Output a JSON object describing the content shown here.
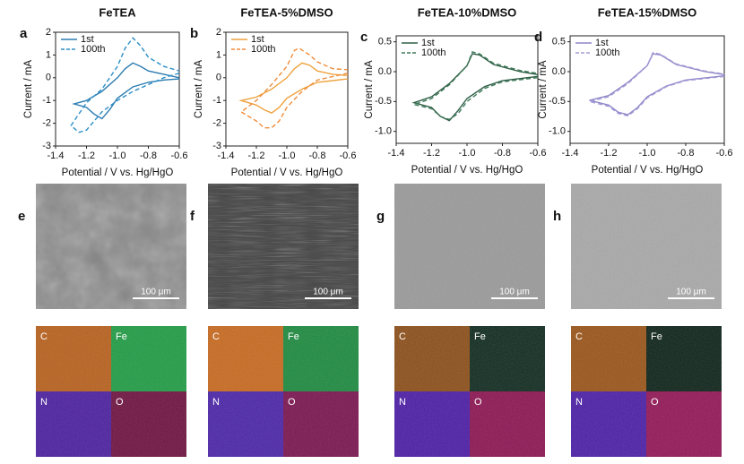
{
  "chart_data": [
    {
      "type": "line",
      "label": "a",
      "title": "FeTEA",
      "xlabel": "Potential / V vs. Hg/HgO",
      "ylabel": "Current / mA",
      "xlim": [
        -1.4,
        -0.6
      ],
      "xticks": [
        -1.4,
        -1.2,
        {
          "value": -1,
          "label": "-1.0"
        },
        -0.8,
        -0.6
      ],
      "ylim": [
        -3,
        2
      ],
      "yticks": [
        -3,
        -2,
        -1,
        0,
        1,
        2
      ],
      "legend": "upper left",
      "series": [
        {
          "name": "1st",
          "color": "#2b7bb0",
          "linestyle": "solid",
          "x": [
            -0.6,
            -0.7,
            -0.8,
            -0.9,
            -1.0,
            -1.05,
            -1.1,
            -1.15,
            -1.2,
            -1.28,
            -1.2,
            -1.1,
            -1.0,
            -0.95,
            -0.9,
            -0.85,
            -0.8,
            -0.7,
            -0.6
          ],
          "values": [
            -0.05,
            -0.1,
            -0.2,
            -0.4,
            -0.9,
            -1.4,
            -1.8,
            -1.6,
            -1.3,
            -1.15,
            -1.0,
            -0.6,
            0,
            0.4,
            0.65,
            0.5,
            0.3,
            0.15,
            0
          ]
        },
        {
          "name": "100th",
          "color": "#2b8fc8",
          "linestyle": "dashed",
          "x": [
            -0.6,
            -0.7,
            -0.8,
            -0.9,
            -1.0,
            -1.1,
            -1.2,
            -1.25,
            -1.3,
            -1.2,
            -1.1,
            -1.0,
            -0.95,
            -0.9,
            -0.85,
            -0.8,
            -0.7,
            -0.6
          ],
          "values": [
            0.2,
            0,
            -0.3,
            -0.6,
            -1.0,
            -1.5,
            -2.3,
            -2.4,
            -2.1,
            -1.1,
            -0.5,
            0.5,
            1.3,
            1.75,
            1.4,
            0.9,
            0.5,
            0.3
          ]
        }
      ]
    },
    {
      "type": "line",
      "label": "b",
      "title": "FeTEA-5%DMSO",
      "xlabel": "Potential / V vs. Hg/HgO",
      "ylabel": "Current / mA",
      "xlim": [
        -1.4,
        -0.6
      ],
      "xticks": [
        -1.4,
        -1.2,
        {
          "value": -1,
          "label": "-1.0"
        },
        -0.8,
        -0.6
      ],
      "ylim": [
        -3,
        2
      ],
      "yticks": [
        -3,
        -2,
        -1,
        0,
        1,
        2
      ],
      "legend": "upper left",
      "series": [
        {
          "name": "1st",
          "color": "#eea23e",
          "linestyle": "solid",
          "x": [
            -0.6,
            -0.8,
            -0.9,
            -1.0,
            -1.05,
            -1.1,
            -1.15,
            -1.2,
            -1.3,
            -1.2,
            -1.1,
            -1.0,
            -0.95,
            -0.9,
            -0.85,
            -0.8,
            -0.7,
            -0.6
          ],
          "values": [
            -0.05,
            -0.2,
            -0.5,
            -0.9,
            -1.3,
            -1.55,
            -1.4,
            -1.2,
            -1.0,
            -0.85,
            -0.5,
            0,
            0.4,
            0.65,
            0.55,
            0.3,
            0.15,
            0.1
          ]
        },
        {
          "name": "100th",
          "color": "#f08c3a",
          "linestyle": "dashed",
          "x": [
            -0.6,
            -0.8,
            -0.9,
            -1.0,
            -1.05,
            -1.1,
            -1.15,
            -1.2,
            -1.3,
            -1.2,
            -1.1,
            -1.0,
            -0.95,
            -0.92,
            -0.85,
            -0.8,
            -0.7,
            -0.6
          ],
          "values": [
            0.2,
            -0.1,
            -0.6,
            -1.3,
            -1.9,
            -2.2,
            -2.2,
            -1.9,
            -1.5,
            -1.0,
            -0.3,
            0.5,
            1.2,
            1.3,
            1.0,
            0.7,
            0.4,
            0.35
          ]
        }
      ]
    },
    {
      "type": "line",
      "label": "c",
      "title": "FeTEA-10%DMSO",
      "xlabel": "Potential / V vs. Hg/HgO",
      "ylabel": "Current / mA",
      "xlim": [
        -1.4,
        -0.6
      ],
      "xticks": [
        -1.4,
        -1.2,
        {
          "value": -1,
          "label": "-1.0"
        },
        -0.8,
        -0.6
      ],
      "ylim": [
        -1.2,
        0.6
      ],
      "yticks": [
        {
          "value": -1,
          "label": "-1.0"
        },
        -0.5,
        {
          "value": 0,
          "label": "0.0"
        },
        0.5
      ],
      "legend": "upper left",
      "series": [
        {
          "name": "1st",
          "color": "#2e5e45",
          "linestyle": "solid",
          "x": [
            -0.6,
            -0.8,
            -0.9,
            -1.0,
            -1.05,
            -1.1,
            -1.15,
            -1.2,
            -1.3,
            -1.2,
            -1.1,
            -1.0,
            -0.97,
            -0.93,
            -0.85,
            -0.7,
            -0.6
          ],
          "values": [
            -0.08,
            -0.15,
            -0.25,
            -0.45,
            -0.65,
            -0.82,
            -0.75,
            -0.6,
            -0.52,
            -0.42,
            -0.2,
            0.1,
            0.3,
            0.28,
            0.12,
            0,
            -0.05
          ]
        },
        {
          "name": "100th",
          "color": "#3f7a5a",
          "linestyle": "dashed",
          "x": [
            -0.6,
            -0.8,
            -0.9,
            -1.0,
            -1.05,
            -1.1,
            -1.15,
            -1.2,
            -1.3,
            -1.2,
            -1.1,
            -1.0,
            -0.97,
            -0.93,
            -0.85,
            -0.7,
            -0.6
          ],
          "values": [
            -0.1,
            -0.17,
            -0.28,
            -0.5,
            -0.7,
            -0.8,
            -0.75,
            -0.62,
            -0.55,
            -0.45,
            -0.22,
            0.1,
            0.33,
            0.3,
            0.14,
            0.02,
            -0.03
          ]
        }
      ]
    },
    {
      "type": "line",
      "label": "d",
      "title": "FeTEA-15%DMSO",
      "xlabel": "Potential / V vs. Hg/HgO",
      "ylabel": "Current / mA",
      "xlim": [
        -1.4,
        -0.6
      ],
      "xticks": [
        -1.4,
        -1.2,
        {
          "value": -1,
          "label": "-1.0"
        },
        -0.8,
        -0.6
      ],
      "ylim": [
        -1.2,
        0.6
      ],
      "yticks": [
        {
          "value": -1,
          "label": "-1.0"
        },
        -0.5,
        {
          "value": 0,
          "label": "0.0"
        },
        0.5
      ],
      "legend": "upper left",
      "series": [
        {
          "name": "1st",
          "color": "#8e86c8",
          "linestyle": "solid",
          "x": [
            -0.6,
            -0.8,
            -0.9,
            -1.0,
            -1.05,
            -1.1,
            -1.15,
            -1.2,
            -1.3,
            -1.2,
            -1.1,
            -1.0,
            -0.97,
            -0.93,
            -0.85,
            -0.7,
            -0.6
          ],
          "values": [
            -0.07,
            -0.14,
            -0.24,
            -0.42,
            -0.6,
            -0.72,
            -0.68,
            -0.56,
            -0.48,
            -0.4,
            -0.18,
            0.1,
            0.3,
            0.28,
            0.12,
            0,
            -0.05
          ]
        },
        {
          "name": "100th",
          "color": "#a39bd6",
          "linestyle": "dashed",
          "x": [
            -0.6,
            -0.8,
            -0.9,
            -1.0,
            -1.05,
            -1.1,
            -1.15,
            -1.2,
            -1.3,
            -1.2,
            -1.1,
            -1.0,
            -0.97,
            -0.93,
            -0.85,
            -0.7,
            -0.6
          ],
          "values": [
            -0.08,
            -0.15,
            -0.25,
            -0.44,
            -0.62,
            -0.74,
            -0.7,
            -0.58,
            -0.5,
            -0.42,
            -0.2,
            0.1,
            0.32,
            0.29,
            0.13,
            0.01,
            -0.04
          ]
        }
      ]
    }
  ],
  "sem_panels": [
    {
      "label": "e",
      "scale_bar": "100 μm",
      "maps": [
        "C",
        "Fe",
        "N",
        "O"
      ]
    },
    {
      "label": "f",
      "scale_bar": "100 μm",
      "maps": [
        "C",
        "Fe",
        "N",
        "O"
      ]
    },
    {
      "label": "g",
      "scale_bar": "100 μm",
      "maps": [
        "C",
        "Fe",
        "N",
        "O"
      ]
    },
    {
      "label": "h",
      "scale_bar": "100 μm",
      "maps": [
        "C",
        "Fe",
        "N",
        "O"
      ]
    }
  ]
}
